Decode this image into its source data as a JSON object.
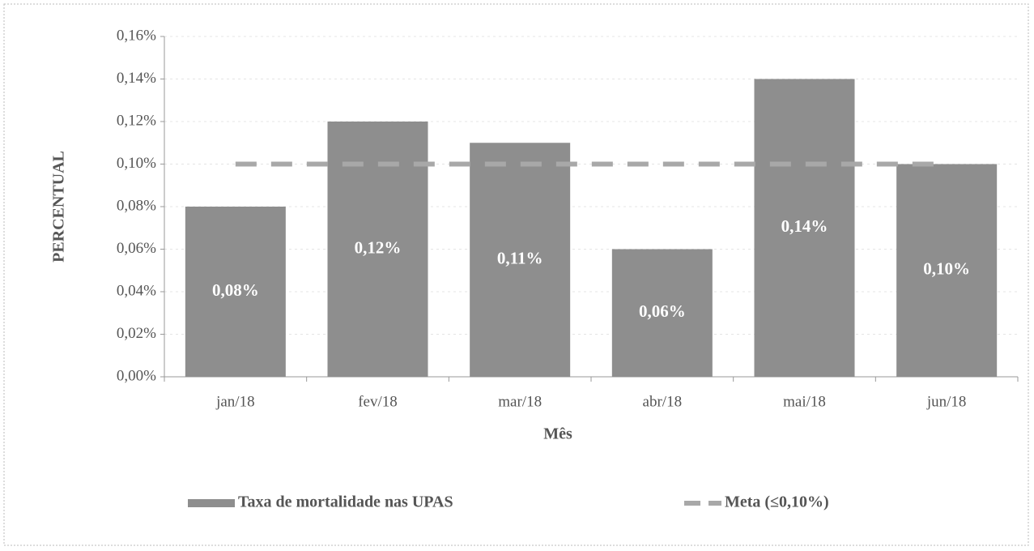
{
  "chart_data": {
    "type": "bar",
    "y_label": "PERCENTUAL",
    "x_label": "Mês",
    "categories": [
      "jan/18",
      "fev/18",
      "mar/18",
      "abr/18",
      "mai/18",
      "jun/18"
    ],
    "series": [
      {
        "name": "Taxa de mortalidade nas UPAS",
        "type": "bar",
        "color": "#8e8e8e",
        "values": [
          0.08,
          0.12,
          0.11,
          0.06,
          0.14,
          0.1
        ],
        "value_labels": [
          "0,08%",
          "0,12%",
          "0,11%",
          "0,06%",
          "0,14%",
          "0,10%"
        ]
      },
      {
        "name": "Meta (≤0,10%)",
        "type": "line",
        "color": "#a8a8a8",
        "dashed": true,
        "values": [
          0.1,
          0.1,
          0.1,
          0.1,
          0.1,
          0.1
        ]
      }
    ],
    "ylim": [
      0,
      0.16
    ],
    "yticks": [
      {
        "value": 0,
        "label": "0,00%"
      },
      {
        "value": 0.02,
        "label": "0,02%"
      },
      {
        "value": 0.04,
        "label": "0,04%"
      },
      {
        "value": 0.06,
        "label": "0,06%"
      },
      {
        "value": 0.08,
        "label": "0,08%"
      },
      {
        "value": 0.1,
        "label": "0,10%"
      },
      {
        "value": 0.12,
        "label": "0,12%"
      },
      {
        "value": 0.14,
        "label": "0,14%"
      },
      {
        "value": 0.16,
        "label": "0,16%"
      }
    ],
    "grid": true,
    "legend": "bottom"
  }
}
